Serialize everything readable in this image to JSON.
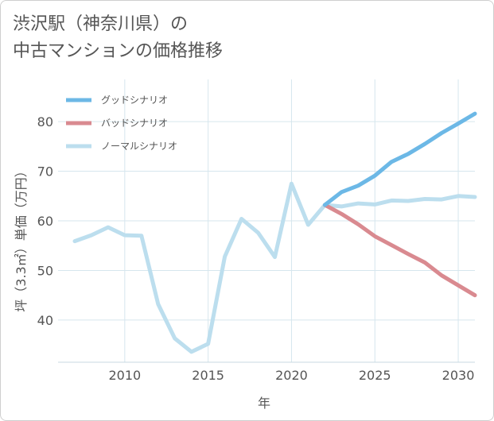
{
  "page": {
    "title_line1": "渋沢駅（神奈川県）の",
    "title_line2": "中古マンションの価格推移"
  },
  "colors": {
    "good": "#6cb8e6",
    "bad": "#d98a90",
    "normal": "#bcdeee",
    "grid": "#d6e6ee",
    "text": "#555555"
  },
  "chart_data": {
    "type": "line",
    "title": "渋沢駅（神奈川県）の中古マンションの価格推移",
    "xlabel": "年",
    "ylabel": "坪（3.3㎡）単価（万円）",
    "xlim": [
      2006,
      2031
    ],
    "ylim": [
      31.5,
      88.5
    ],
    "xticks": [
      2010,
      2015,
      2020,
      2025,
      2030
    ],
    "yticks": [
      40,
      50,
      60,
      70,
      80
    ],
    "grid": true,
    "legend_position": "top-left",
    "series": [
      {
        "name": "グッドシナリオ",
        "color": "#6cb8e6",
        "x": [
          2022,
          2023,
          2024,
          2025,
          2026,
          2027,
          2028,
          2029,
          2030,
          2031
        ],
        "y": [
          63.2,
          65.8,
          67.1,
          69.1,
          71.9,
          73.5,
          75.5,
          77.7,
          79.6,
          81.6
        ]
      },
      {
        "name": "バッドシナリオ",
        "color": "#d98a90",
        "x": [
          2022,
          2023,
          2024,
          2025,
          2026,
          2027,
          2028,
          2029,
          2030,
          2031
        ],
        "y": [
          63.2,
          61.4,
          59.3,
          56.9,
          55.1,
          53.3,
          51.6,
          49.0,
          47.0,
          45.0
        ]
      },
      {
        "name": "ノーマルシナリオ",
        "color": "#bcdeee",
        "x": [
          2007,
          2008,
          2009,
          2010,
          2011,
          2012,
          2013,
          2014,
          2015,
          2016,
          2017,
          2018,
          2019,
          2020,
          2021,
          2022,
          2023,
          2024,
          2025,
          2026,
          2027,
          2028,
          2029,
          2030,
          2031
        ],
        "y": [
          55.9,
          57.1,
          58.7,
          57.1,
          57.0,
          43.2,
          36.3,
          33.6,
          35.2,
          52.8,
          60.4,
          57.6,
          52.7,
          67.5,
          59.2,
          63.2,
          62.9,
          63.5,
          63.3,
          64.1,
          64.0,
          64.4,
          64.3,
          65.0,
          64.8
        ]
      }
    ]
  }
}
